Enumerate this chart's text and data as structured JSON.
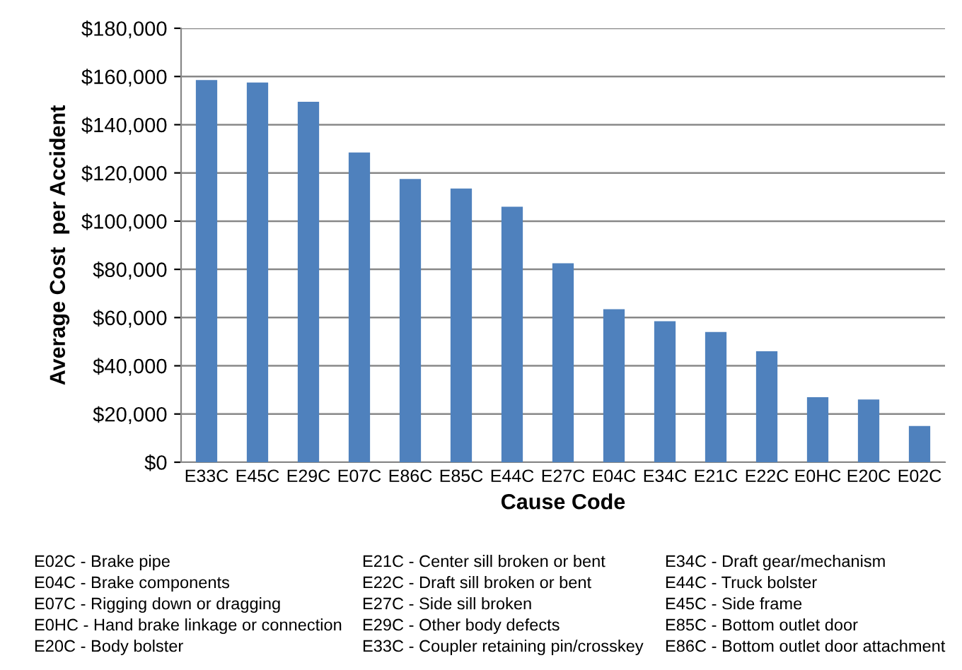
{
  "chart_data": {
    "type": "bar",
    "xlabel": "Cause Code",
    "ylabel": "Average Cost  per Accident",
    "categories": [
      "E33C",
      "E45C",
      "E29C",
      "E07C",
      "E86C",
      "E85C",
      "E44C",
      "E27C",
      "E04C",
      "E34C",
      "E21C",
      "E22C",
      "E0HC",
      "E20C",
      "E02C"
    ],
    "values": [
      158500,
      157500,
      149500,
      128500,
      117500,
      113500,
      106000,
      82500,
      63500,
      58500,
      54000,
      46000,
      27000,
      26000,
      15000
    ],
    "color": "#4f81bd",
    "ylim": [
      0,
      180000
    ],
    "yticks": [
      {
        "value": 0,
        "label": "$0"
      },
      {
        "value": 20000,
        "label": "$20,000"
      },
      {
        "value": 40000,
        "label": "$40,000"
      },
      {
        "value": 60000,
        "label": "$60,000"
      },
      {
        "value": 80000,
        "label": "$80,000"
      },
      {
        "value": 100000,
        "label": "$100,000"
      },
      {
        "value": 120000,
        "label": "$120,000"
      },
      {
        "value": 140000,
        "label": "$140,000"
      },
      {
        "value": 160000,
        "label": "$160,000"
      },
      {
        "value": 180000,
        "label": "$180,000"
      }
    ],
    "grid": "y",
    "legend": false,
    "annotations": [
      "E02C - Brake pipe",
      "E04C - Brake components",
      "E07C - Rigging down or dragging",
      "E0HC - Hand brake linkage or connection",
      "E20C - Body bolster",
      "E21C - Center sill broken or bent",
      "E22C - Draft sill broken or bent",
      "E27C - Side sill broken",
      "E29C - Other body defects",
      "E33C - Coupler retaining pin/crosskey",
      "E34C - Draft gear/mechanism",
      "E44C - Truck bolster",
      "E45C - Side frame",
      "E85C - Bottom outlet door",
      "E86C - Bottom outlet door attachment"
    ]
  }
}
